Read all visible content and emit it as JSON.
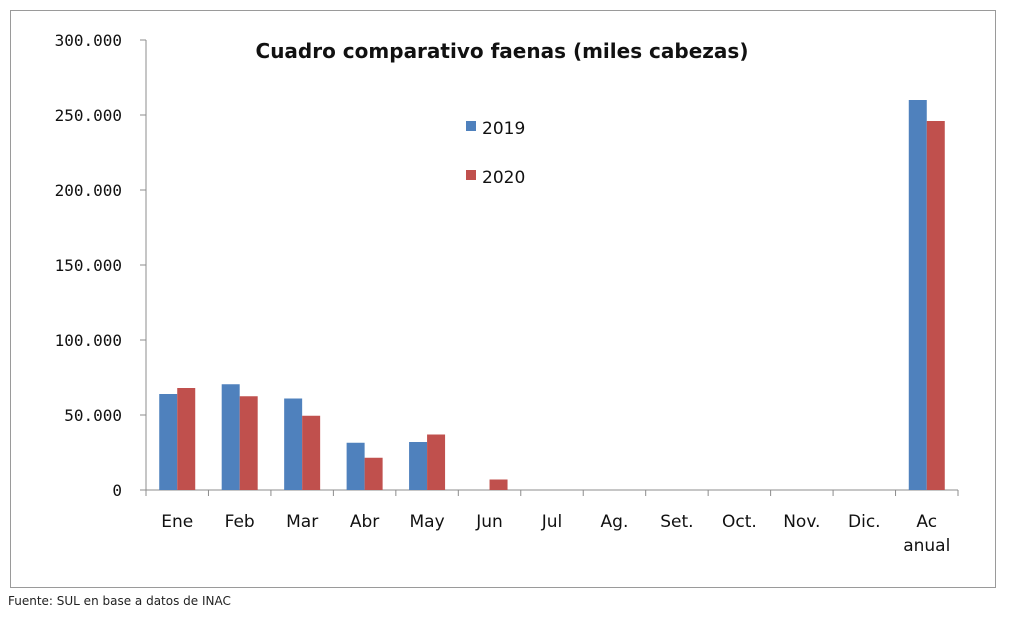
{
  "chart_data": {
    "type": "bar",
    "title": "Cuadro comparativo faenas (miles cabezas)",
    "categories": [
      "Ene",
      "Feb",
      "Mar",
      "Abr",
      "May",
      "Jun",
      "Jul",
      "Ag.",
      "Set.",
      "Oct.",
      "Nov.",
      "Dic.",
      "Ac anual"
    ],
    "series": [
      {
        "name": "2019",
        "color": "#4f81bd",
        "values": [
          64000,
          70500,
          61000,
          31500,
          32000,
          0,
          0,
          0,
          0,
          0,
          0,
          0,
          260000
        ]
      },
      {
        "name": "2020",
        "color": "#c0504d",
        "values": [
          68000,
          62500,
          49500,
          21500,
          37000,
          7000,
          0,
          0,
          0,
          0,
          0,
          0,
          246000
        ]
      }
    ],
    "yticks": [
      "0",
      "50.000",
      "100.000",
      "150.000",
      "200.000",
      "250.000",
      "300.000"
    ],
    "ylim": [
      0,
      300000
    ],
    "grid": false,
    "legend_position": "top-center"
  },
  "source": "Fuente: SUL en base a datos de INAC"
}
